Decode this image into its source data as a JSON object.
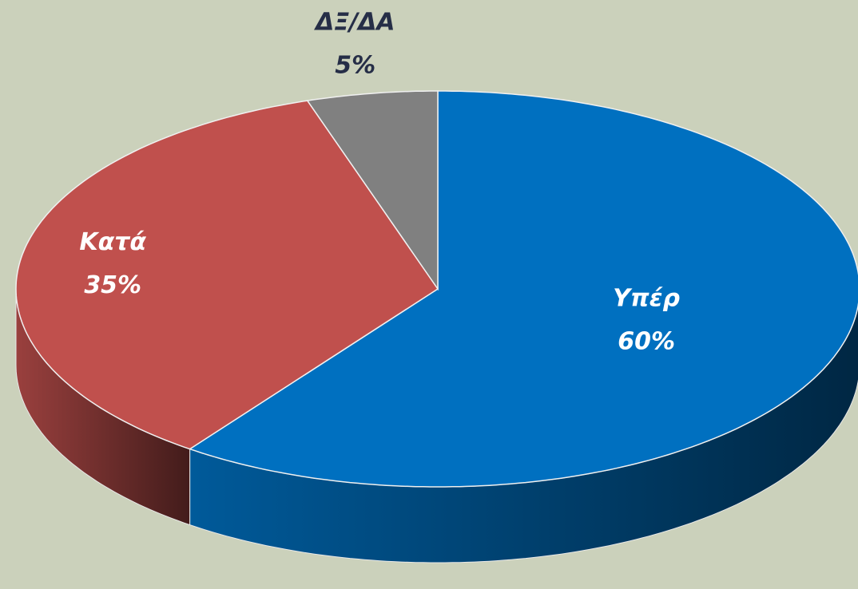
{
  "chart_data": {
    "type": "pie3d",
    "categories": [
      "Υπέρ",
      "Κατά",
      "ΔΞ/ΔΑ"
    ],
    "values": [
      60,
      35,
      5
    ],
    "value_labels": [
      "60%",
      "35%",
      "5%"
    ],
    "colors": [
      "#0070c0",
      "#c0504d",
      "#808080"
    ]
  }
}
